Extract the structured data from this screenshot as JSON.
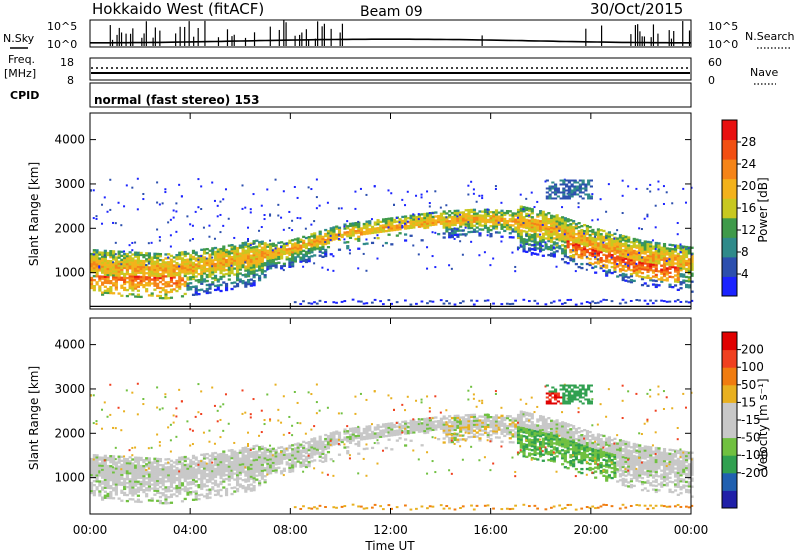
{
  "header": {
    "station": "Hokkaido West (fitACF)",
    "beam": "Beam 09",
    "date": "30/Oct/2015"
  },
  "noise_panel": {
    "left_label": "N.Sky",
    "right_label": "N.Search",
    "tick_top": "10^5",
    "tick_bottom": "10^0"
  },
  "freq_panel": {
    "left_label_1": "Freq.",
    "left_label_2": "[MHz]",
    "left_tick_top": "18",
    "left_tick_bottom": "8",
    "right_tick_top": "60",
    "right_tick_bottom": "0",
    "right_label": "Nave"
  },
  "cpid_panel": {
    "label": "CPID",
    "text": "normal (fast stereo) 153"
  },
  "colors": {
    "power_scale": [
      "#1b23ff",
      "#2c4fae",
      "#2f8a8a",
      "#3f9a4a",
      "#c8c820",
      "#f3b21b",
      "#f58418",
      "#f24f12",
      "#e81010"
    ],
    "velocity_scale": [
      "#2020a8",
      "#2060b0",
      "#30a050",
      "#70c040",
      "#c8c8c8",
      "#c8c8c8",
      "#e8b020",
      "#f07c10",
      "#f04020",
      "#e00000"
    ]
  },
  "chart_data": [
    {
      "type": "heatmap",
      "title": "Power",
      "ylabel": "Slant Range [km]",
      "ylim": [
        180,
        4600
      ],
      "yticks": [
        "1000",
        "2000",
        "3000",
        "4000"
      ],
      "ytick_values": [
        1000,
        2000,
        3000,
        4000
      ],
      "xlim": [
        0,
        24
      ],
      "colorbar": {
        "label": "Power [dB]",
        "range": [
          0,
          32
        ],
        "ticks": [
          "4",
          "8",
          "12",
          "16",
          "20",
          "24",
          "28"
        ],
        "tick_values": [
          4,
          8,
          12,
          16,
          20,
          24,
          28
        ]
      }
    },
    {
      "type": "heatmap",
      "title": "Velocity",
      "ylabel": "Slant Range [km]",
      "xlabel": "Time UT",
      "ylim": [
        180,
        4600
      ],
      "yticks": [
        "1000",
        "2000",
        "3000",
        "4000"
      ],
      "ytick_values": [
        1000,
        2000,
        3000,
        4000
      ],
      "xlim": [
        0,
        24
      ],
      "xticks": [
        "00:00",
        "04:00",
        "08:00",
        "12:00",
        "16:00",
        "20:00",
        "00:00"
      ],
      "xtick_values": [
        0,
        4,
        8,
        12,
        16,
        20,
        24
      ],
      "colorbar": {
        "label": "Velocity [m s⁻¹]",
        "ticks": [
          "200",
          "100",
          "50",
          "15",
          "-15",
          "-50",
          "-100",
          "-200"
        ]
      }
    }
  ]
}
